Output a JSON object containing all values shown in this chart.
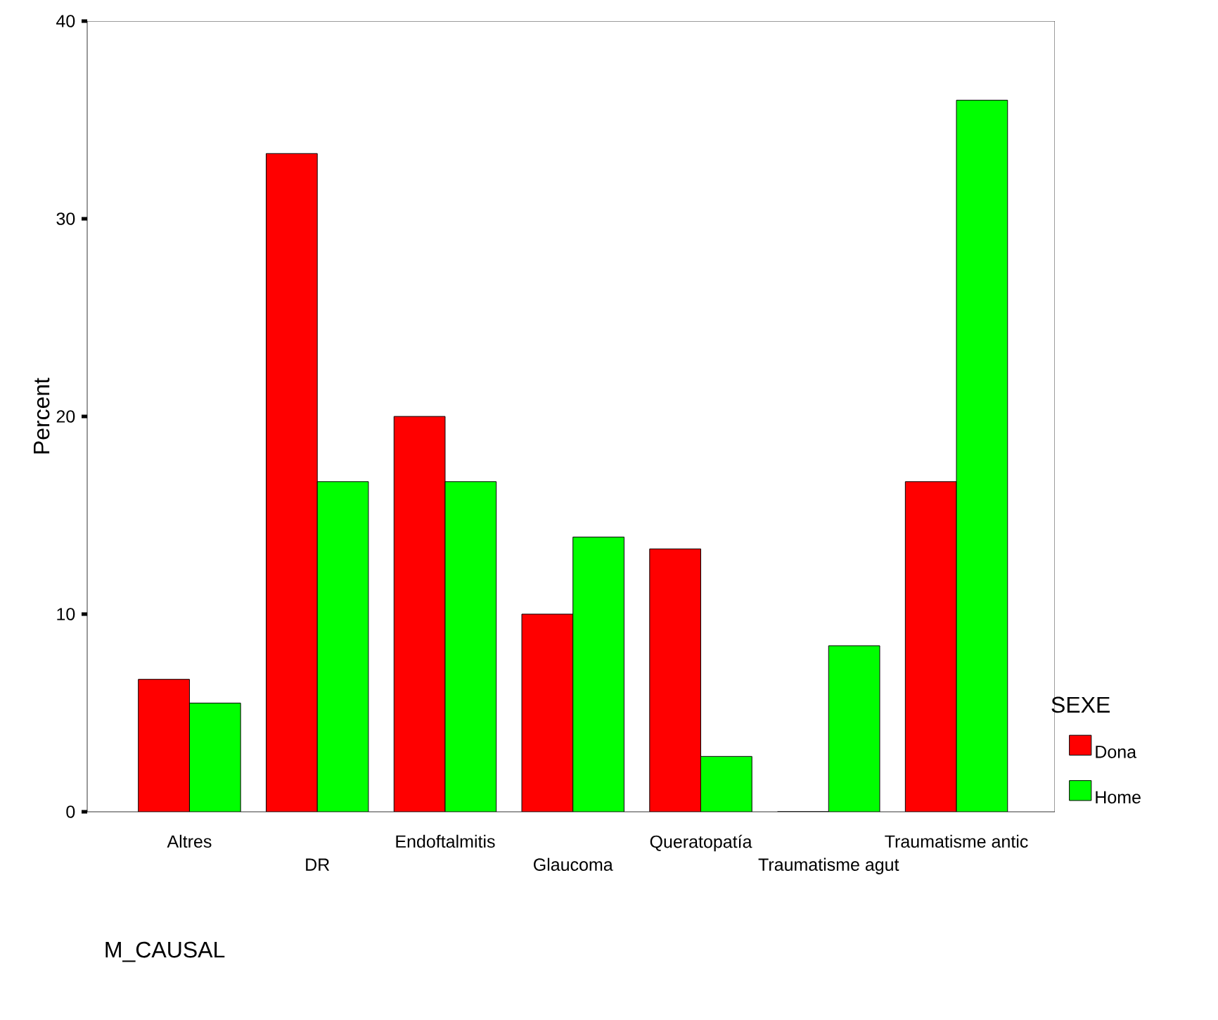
{
  "chart_data": {
    "type": "bar",
    "xlabel": "M_CAUSAL",
    "ylabel": "Percent",
    "legend_title": "SEXE",
    "categories": [
      "Altres",
      "DR",
      "Endoftalmitis",
      "Glaucoma",
      "Queratopatía",
      "Traumatisme agut",
      "Traumatisme antic"
    ],
    "series": [
      {
        "name": "Dona",
        "color": "#ff0000",
        "values": [
          6.7,
          33.3,
          20.0,
          10.0,
          13.3,
          0,
          16.7
        ]
      },
      {
        "name": "Home",
        "color": "#00ff00",
        "values": [
          5.5,
          16.7,
          16.7,
          13.9,
          2.8,
          8.4,
          36.0
        ]
      }
    ],
    "ylim": [
      0,
      40
    ],
    "yticks": [
      0,
      10,
      20,
      30,
      40
    ],
    "grid": false,
    "legend": "bottom right"
  }
}
